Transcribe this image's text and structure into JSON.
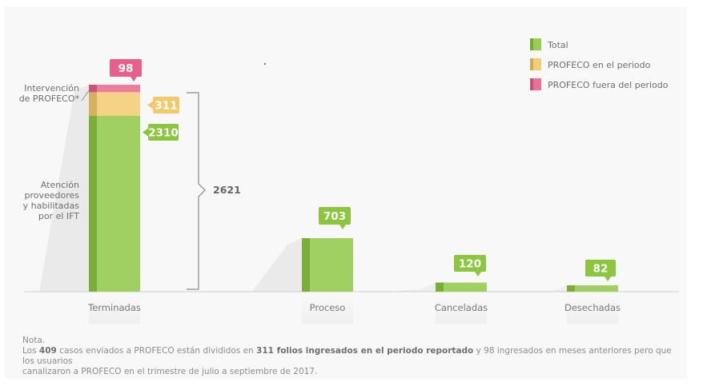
{
  "chart_data": {
    "type": "bar",
    "stacked": true,
    "categories": [
      "Terminadas",
      "Proceso",
      "Canceladas",
      "Desechadas"
    ],
    "series": [
      {
        "name": "Total",
        "color": "#8cc63f",
        "values": [
          2310,
          703,
          120,
          82
        ]
      },
      {
        "name": "PROFECO en el periodo",
        "color": "#f2c96b",
        "values": [
          311,
          0,
          0,
          0
        ]
      },
      {
        "name": "PROFECO fuera del periodo",
        "color": "#e8608a",
        "values": [
          98,
          0,
          0,
          0
        ]
      }
    ],
    "legend_position": "top-right",
    "bar_labels": [
      "703",
      "120",
      "82"
    ],
    "terminadas_labels": {
      "green": "2310",
      "yellow": "311",
      "pink": "98"
    },
    "bracket_total": "2621",
    "side_labels": {
      "intervention": [
        "Intervención",
        "de PROFECO*"
      ],
      "attention": [
        "Atención",
        "proveedores",
        "y habilitadas",
        "por el IFT"
      ]
    }
  },
  "note": {
    "title": "Nota.",
    "line1_prefix": "Los ",
    "line1_bold1": "409",
    "line1_mid": " casos enviados a PROFECO están divididos en ",
    "line1_bold2": "311 folios ingresados en el periodo reportado",
    "line1_suffix": " y 98 ingresados en meses anteriores pero que los usuarios",
    "line2": "canalizaron a PROFECO en el trimestre de julio a septiembre de 2017."
  }
}
